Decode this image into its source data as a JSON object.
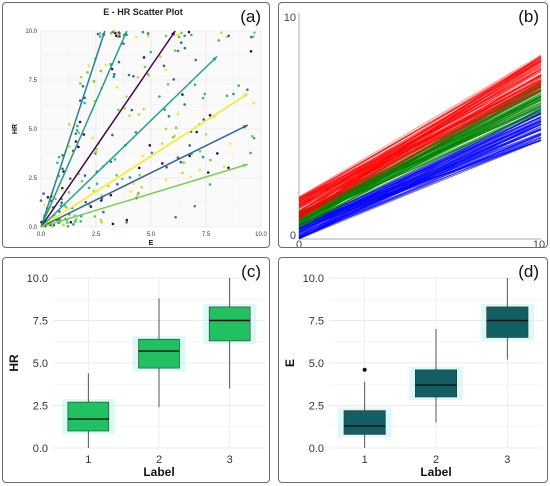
{
  "chart_data": [
    {
      "panel": "(a)",
      "type": "scatter",
      "title": "E - HR Scatter Plot",
      "xlabel": "E",
      "ylabel": "HR",
      "xlim": [
        0,
        10
      ],
      "ylim": [
        0,
        10
      ],
      "xticks": [
        "0.0",
        "2.5",
        "5.0",
        "7.5",
        "10.0"
      ],
      "yticks": [
        "0.0",
        "2.5",
        "5.0",
        "7.5",
        "10.0"
      ],
      "grid": true,
      "colors": [
        "#440154",
        "#31688e",
        "#26828e",
        "#1f9e89",
        "#35b779",
        "#6ece58",
        "#b5de2b",
        "#fde725"
      ],
      "lines": [
        {
          "color": "#26828e",
          "x": [
            0,
            2.9
          ],
          "y": [
            0,
            10
          ]
        },
        {
          "color": "#1f9e89",
          "x": [
            0,
            3.9
          ],
          "y": [
            0,
            10
          ]
        },
        {
          "color": "#440154",
          "x": [
            0,
            6.1
          ],
          "y": [
            0,
            10
          ]
        },
        {
          "color": "#21a585",
          "x": [
            0,
            8.0
          ],
          "y": [
            0,
            8.7
          ]
        },
        {
          "color": "#fde725",
          "x": [
            0,
            9.4
          ],
          "y": [
            0,
            6.8
          ]
        },
        {
          "color": "#31688e",
          "x": [
            0,
            9.4
          ],
          "y": [
            0,
            5.2
          ]
        },
        {
          "color": "#7ad151",
          "x": [
            0,
            9.4
          ],
          "y": [
            0,
            3.2
          ]
        }
      ]
    },
    {
      "panel": "(b)",
      "type": "line",
      "x_ticks": [
        "0",
        "10"
      ],
      "y_ticks": [
        "0",
        "10"
      ],
      "xlim": [
        0,
        10
      ],
      "ylim": [
        0,
        10
      ],
      "series": [
        {
          "color": "#0000ff",
          "x": [
            0,
            10
          ],
          "y_start": [
            0.0,
            0.7
          ],
          "y_end": [
            4.4,
            5.9
          ]
        },
        {
          "color": "#008000",
          "x": [
            0,
            10
          ],
          "y_start": [
            0.5,
            1.2
          ],
          "y_end": [
            5.7,
            7.1
          ]
        },
        {
          "color": "#ff0000",
          "x": [
            0,
            10
          ],
          "y_start": [
            0.9,
            1.9
          ],
          "y_end": [
            6.7,
            8.3
          ]
        }
      ]
    },
    {
      "panel": "(c)",
      "type": "box",
      "categories": [
        "1",
        "2",
        "3"
      ],
      "xlabel": "Label",
      "ylabel": "HR",
      "ylim": [
        0,
        10
      ],
      "yticks": [
        "0.0",
        "2.5",
        "5.0",
        "7.5",
        "10.0"
      ],
      "fill": "#21c060",
      "boxes": [
        {
          "min": 0.0,
          "q1": 1.0,
          "median": 1.7,
          "q3": 2.7,
          "max": 4.4,
          "outliers": []
        },
        {
          "min": 2.4,
          "q1": 4.7,
          "median": 5.7,
          "q3": 6.4,
          "max": 8.8,
          "outliers": []
        },
        {
          "min": 3.5,
          "q1": 6.3,
          "median": 7.5,
          "q3": 8.3,
          "max": 10.0,
          "outliers": []
        }
      ]
    },
    {
      "panel": "(d)",
      "type": "box",
      "categories": [
        "1",
        "2",
        "3"
      ],
      "xlabel": "Label",
      "ylabel": "E",
      "ylim": [
        0,
        10
      ],
      "yticks": [
        "0.0",
        "2.5",
        "5.0",
        "7.5",
        "10.0"
      ],
      "fill": "#135e63",
      "boxes": [
        {
          "min": 0.0,
          "q1": 0.8,
          "median": 1.3,
          "q3": 2.2,
          "max": 3.9,
          "outliers": [
            4.6
          ]
        },
        {
          "min": 1.5,
          "q1": 3.0,
          "median": 3.7,
          "q3": 4.6,
          "max": 7.0,
          "outliers": []
        },
        {
          "min": 5.2,
          "q1": 6.5,
          "median": 7.5,
          "q3": 8.3,
          "max": 10.0,
          "outliers": []
        }
      ]
    }
  ]
}
